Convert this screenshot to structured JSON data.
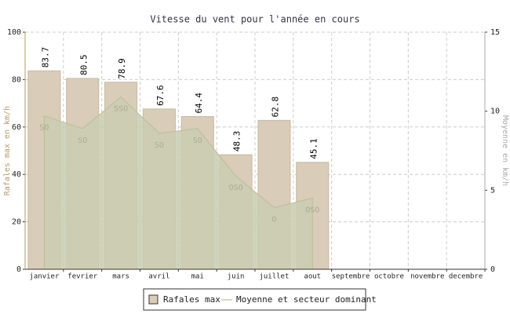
{
  "chart_data": {
    "type": "bar",
    "title": "Vitesse du vent pour l'année en cours",
    "y_label": "Rafales max en km/h",
    "y2_label": "Moyenne en km/h",
    "categories": [
      "janvier",
      "fevrier",
      "mars",
      "avril",
      "mai",
      "juin",
      "juillet",
      "aout",
      "septembre",
      "octobre",
      "novembre",
      "decembre"
    ],
    "series": [
      {
        "name": "Rafales max",
        "color": "#d9ccb9",
        "type": "bar",
        "values": [
          83.7,
          80.5,
          78.9,
          67.6,
          64.4,
          48.3,
          62.8,
          45.1,
          null,
          null,
          null,
          null
        ]
      },
      {
        "name": "Moyenne et secteur dominant",
        "color": "#c9ccb0",
        "type": "area",
        "axis": "y2",
        "values": [
          9.7,
          8.9,
          10.9,
          8.6,
          8.9,
          5.9,
          3.9,
          4.5,
          null,
          null,
          null,
          null
        ],
        "labels": [
          "SO",
          "SO",
          "SSO",
          "SO",
          "SO",
          "OSO",
          "O",
          "OSO",
          null,
          null,
          null,
          null
        ]
      }
    ],
    "ylim": [
      0,
      100
    ],
    "yticks": [
      0,
      20,
      40,
      60,
      80,
      100
    ],
    "y2lim": [
      0,
      15
    ],
    "y2ticks": [
      0,
      5,
      10,
      15
    ],
    "grid": true,
    "legend": "bottom"
  }
}
